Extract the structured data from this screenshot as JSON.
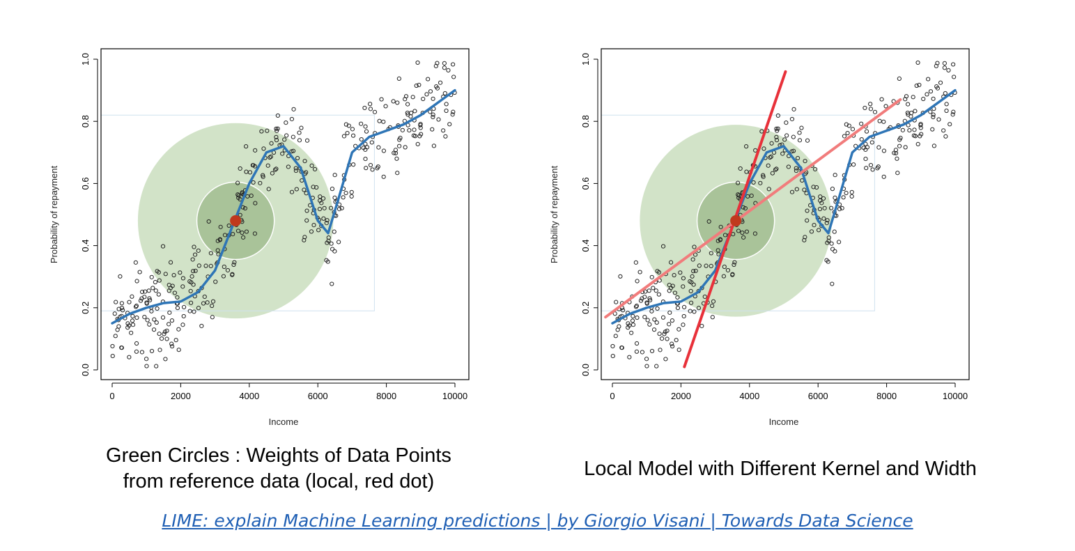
{
  "captions": {
    "left_line1": "Green Circles : Weights of Data Points",
    "left_line2": "from reference data (local, red dot)",
    "right": "Local Model with Different Kernel and Width"
  },
  "source_link": "LIME: explain Machine Learning predictions | by Giorgio Visani | Towards Data Science",
  "colors": {
    "scatter_point": "#222222",
    "curve": "#2e75b6",
    "kernel_outer": "#d2e3c8",
    "kernel_inner": "#a9c399",
    "reference_dot": "#c0391d",
    "local_model_steep": "#e8313a",
    "local_model_shallow": "#f17c7c",
    "link": "#1f5fb4"
  },
  "chart_data": [
    {
      "type": "scatter",
      "xlabel": "Income",
      "ylabel": "Probability of repayment",
      "xlim": [
        0,
        10000
      ],
      "ylim": [
        0,
        1
      ],
      "xticks": [
        "0",
        "2000",
        "4000",
        "6000",
        "8000",
        "10000"
      ],
      "yticks": [
        "0.0",
        "0.2",
        "0.4",
        "0.6",
        "0.8",
        "1.0"
      ],
      "reference_point": {
        "x": 3600,
        "y": 0.48
      },
      "kernel_circles": [
        {
          "name": "outer",
          "center_x": 3600,
          "center_y": 0.48,
          "radius_x_income": 2850
        },
        {
          "name": "inner",
          "center_x": 3600,
          "center_y": 0.48,
          "radius_x_income": 1130
        }
      ],
      "curve_x": [
        0,
        500,
        1000,
        1500,
        2000,
        2500,
        3000,
        3500,
        4000,
        4500,
        5000,
        5500,
        6000,
        6300,
        6600,
        7000,
        7500,
        8000,
        8500,
        9000,
        9500,
        10000
      ],
      "curve_y": [
        0.15,
        0.18,
        0.2,
        0.215,
        0.22,
        0.25,
        0.32,
        0.46,
        0.6,
        0.7,
        0.72,
        0.65,
        0.48,
        0.44,
        0.55,
        0.7,
        0.75,
        0.77,
        0.79,
        0.82,
        0.86,
        0.9
      ]
    },
    {
      "type": "scatter",
      "xlabel": "Income",
      "ylabel": "Probability of repayment",
      "xlim": [
        0,
        10000
      ],
      "ylim": [
        0,
        1
      ],
      "xticks": [
        "0",
        "2000",
        "4000",
        "6000",
        "8000",
        "10000"
      ],
      "yticks": [
        "0.0",
        "0.2",
        "0.4",
        "0.6",
        "0.8",
        "1.0"
      ],
      "reference_point": {
        "x": 3600,
        "y": 0.48
      },
      "kernel_circles": [
        {
          "name": "outer",
          "center_x": 3600,
          "center_y": 0.48,
          "radius_x_income": 2800
        },
        {
          "name": "inner",
          "center_x": 3600,
          "center_y": 0.48,
          "radius_x_income": 1130
        }
      ],
      "curve_x": [
        0,
        500,
        1000,
        1500,
        2000,
        2500,
        3000,
        3500,
        4000,
        4500,
        5000,
        5500,
        6000,
        6300,
        6600,
        7000,
        7500,
        8000,
        8500,
        9000,
        9500,
        10000
      ],
      "curve_y": [
        0.15,
        0.18,
        0.2,
        0.215,
        0.22,
        0.25,
        0.32,
        0.46,
        0.6,
        0.7,
        0.72,
        0.65,
        0.48,
        0.44,
        0.55,
        0.7,
        0.75,
        0.77,
        0.79,
        0.82,
        0.86,
        0.9
      ],
      "local_models": [
        {
          "name": "steep",
          "x": [
            2100,
            5050
          ],
          "y": [
            0.01,
            0.96
          ]
        },
        {
          "name": "shallow",
          "x": [
            -200,
            8400
          ],
          "y": [
            0.17,
            0.87
          ]
        }
      ]
    }
  ]
}
